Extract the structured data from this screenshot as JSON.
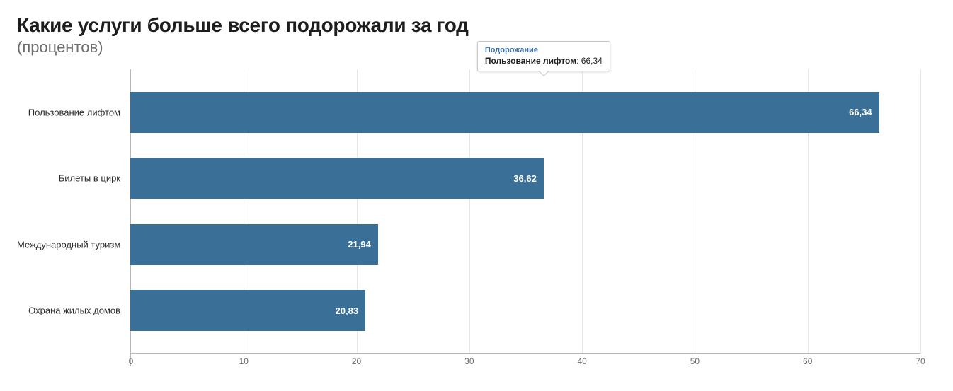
{
  "title": "Какие услуги больше всего подорожали за год",
  "subtitle": "(процентов)",
  "chart": {
    "type": "bar-horizontal",
    "xlim": [
      0,
      70
    ],
    "xtick_step": 10,
    "bar_color": "#3a6f98",
    "bar_label_color": "#ffffff",
    "grid_color": "#e6e6e6",
    "axis_color": "#b7b7b7",
    "tick_label_color": "#6d6d6d",
    "category_label_color": "#2b2b2b",
    "background_color": "#ffffff",
    "bar_label_fontsize": 13,
    "category_fontsize": 13,
    "tick_fontsize": 12,
    "categories": [
      {
        "label": "Пользование лифтом",
        "value": 66.34,
        "value_label": "66,34"
      },
      {
        "label": "Билеты в цирк",
        "value": 36.62,
        "value_label": "36,62"
      },
      {
        "label": "Международный туризм",
        "value": 21.94,
        "value_label": "21,94"
      },
      {
        "label": "Охрана жилых домов",
        "value": 20.83,
        "value_label": "20,83"
      }
    ],
    "xticks": [
      {
        "v": 0,
        "label": "0"
      },
      {
        "v": 10,
        "label": "10"
      },
      {
        "v": 20,
        "label": "20"
      },
      {
        "v": 30,
        "label": "30"
      },
      {
        "v": 40,
        "label": "40"
      },
      {
        "v": 50,
        "label": "50"
      },
      {
        "v": 60,
        "label": "60"
      },
      {
        "v": 70,
        "label": "70"
      }
    ]
  },
  "tooltip": {
    "title": "Подорожание",
    "item_label": "Пользование лифтом",
    "value_label": "66,34",
    "anchor_value": 36.62,
    "box_color": "#ffffff",
    "border_color": "#c9c9c9",
    "title_color": "#3a6ea5"
  }
}
